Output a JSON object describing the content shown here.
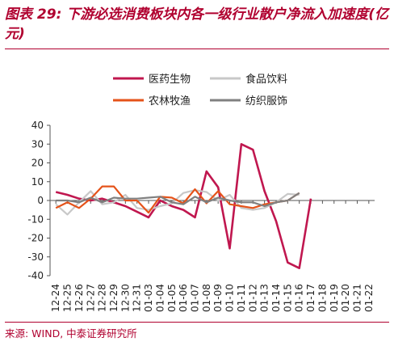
{
  "title": "图表 29:  下游必选消费板块内各一级行业散户净流入加速度(亿元)",
  "source": "来源: WIND, 中泰证券研究所",
  "chart_data": {
    "type": "line",
    "categories": [
      "12-24",
      "12-25",
      "12-26",
      "12-27",
      "12-28",
      "12-29",
      "12-30",
      "12-31",
      "01-03",
      "01-04",
      "01-05",
      "01-06",
      "01-07",
      "01-08",
      "01-09",
      "01-10",
      "01-11",
      "01-12",
      "01-13",
      "01-14",
      "01-15",
      "01-16",
      "01-17",
      "01-18",
      "01-19",
      "01-20",
      "01-21",
      "01-22"
    ],
    "ylim": [
      -40,
      40
    ],
    "yticks": [
      -40,
      -30,
      -20,
      -10,
      0,
      10,
      20,
      30,
      40
    ],
    "legend_position": "top",
    "series": [
      {
        "name": "医药生物",
        "color": "#c0174f",
        "values": [
          4.5,
          3,
          1,
          0,
          1,
          -1,
          -3,
          -6,
          -9,
          0,
          -3,
          -5,
          -9,
          15.5,
          7,
          -25.5,
          30,
          27,
          5,
          -11,
          -33,
          -36,
          1,
          null,
          null,
          null,
          null,
          null
        ]
      },
      {
        "name": "食品饮料",
        "color": "#c8c8c8",
        "values": [
          -2,
          -7.5,
          -1,
          5,
          -2,
          -1,
          3,
          -4,
          -5,
          -3,
          -1.5,
          4,
          5.5,
          4.5,
          0,
          3,
          -4,
          -5,
          -4,
          -1,
          3.5,
          3,
          null,
          null,
          null,
          null,
          null,
          null
        ]
      },
      {
        "name": "农林牧渔",
        "color": "#e5531a",
        "values": [
          -4,
          -1,
          -4,
          1,
          7.5,
          7.5,
          0,
          0,
          -6.5,
          2,
          1.5,
          -1.5,
          6,
          -1.5,
          5,
          -2,
          -3,
          -4,
          -2,
          -1,
          0,
          4,
          null,
          null,
          null,
          null,
          null,
          null
        ]
      },
      {
        "name": "纺织服饰",
        "color": "#808080",
        "values": [
          0,
          0,
          -1,
          1.5,
          -1,
          1.5,
          1,
          1,
          1.5,
          2,
          -1,
          -2,
          2,
          -1,
          1.5,
          0,
          -1,
          -1,
          -3,
          -1,
          0,
          4,
          null,
          null,
          null,
          null,
          null,
          null
        ]
      }
    ]
  }
}
